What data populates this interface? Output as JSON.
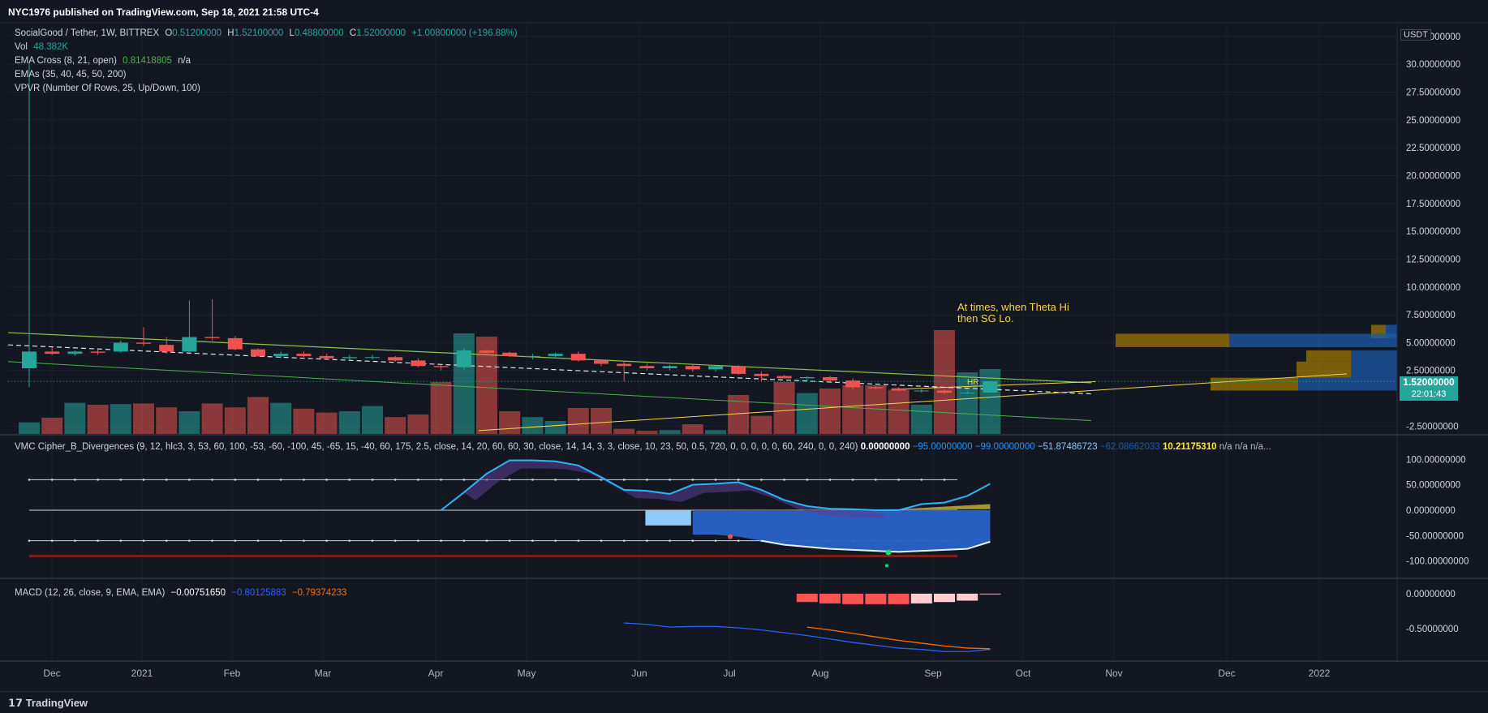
{
  "header": {
    "publisher": "NYC1976 published on TradingView.com, Sep 18, 2021 21:58 UTC-4"
  },
  "footer": {
    "brand": "TradingView"
  },
  "legend": {
    "symbol": "SocialGood / Tether, 1W, BITTREX",
    "o_label": "O",
    "o": "0.51200000",
    "h_label": "H",
    "h": "1.52100000",
    "l_label": "L",
    "l": "0.48800000",
    "c_label": "C",
    "c": "1.52000000",
    "change": "+1.00800000 (+196.88%)",
    "vol_label": "Vol",
    "vol": "48.382K",
    "ema_cross_label": "EMA Cross (8, 21, open)",
    "ema_cross_value": "0.81418805",
    "ema_cross_na": "n/a",
    "emas_label": "EMAs (35, 40, 45, 50, 200)",
    "vpvr_label": "VPVR (Number Of Rows, 25, Up/Down, 100)"
  },
  "annotation": {
    "line1": "At times, when Theta Hi",
    "line2": "then SG Lo.",
    "hr_label": "HR"
  },
  "price_axis": {
    "currency": "USDT",
    "ticks": [
      "32.50000000",
      "30.00000000",
      "27.50000000",
      "25.00000000",
      "22.50000000",
      "20.00000000",
      "17.50000000",
      "15.00000000",
      "12.50000000",
      "10.00000000",
      "7.50000000",
      "5.00000000",
      "2.50000000",
      "1.52000000",
      "-2.50000000"
    ],
    "last_price": "1.52000000",
    "countdown": "22:01:43",
    "last_price_color": "#26a69a"
  },
  "time_axis": {
    "labels": [
      "Dec",
      "2021",
      "Feb",
      "Mar",
      "Apr",
      "May",
      "Jun",
      "Jul",
      "Aug",
      "Sep",
      "Oct",
      "Nov",
      "Dec",
      "2022"
    ]
  },
  "vmc": {
    "label": "VMC Cipher_B_Divergences (9, 12, hlc3, 3, 53, 60, 100, -53, -60, -100, 45, -65, 15, -40, 60, 175, 2.5, close, 14, 20, 60, 60, 30, close, 14, 14, 3, 3, close, 10, 23, 50, 0.5, 720, 0, 0, 0, 0, 0, 60, 240, 0, 0, 240)",
    "values": [
      "0.00000000",
      "−95.00000000",
      "−99.00000000",
      "−51.87486723",
      "−62.08662033",
      "10.21175310",
      "n/a",
      "n/a",
      "n/a..."
    ],
    "value_colors": [
      "#ffffff",
      "#2196f3",
      "#2196f3",
      "#90caf9",
      "#1e5aa8",
      "#ffeb3b",
      "#b2b5be",
      "#b2b5be",
      "#b2b5be"
    ],
    "axis": [
      "100.00000000",
      "50.00000000",
      "0.00000000",
      "-50.00000000",
      "-100.00000000"
    ]
  },
  "macd": {
    "label": "MACD (12, 26, close, 9, EMA, EMA)",
    "hist": "−0.00751650",
    "macd": "−0.80125883",
    "signal": "−0.79374233",
    "axis": [
      "0.00000000",
      "-0.50000000"
    ]
  },
  "colors": {
    "bg": "#131722",
    "up": "#26a69a",
    "down": "#ef5350",
    "grid": "#1e222d"
  },
  "chart_data": [
    {
      "type": "candlestick",
      "title": "SocialGood / Tether, 1W, BITTREX",
      "x": [
        "Nov 23",
        "Nov 30",
        "Dec 7",
        "Dec 14",
        "Dec 21",
        "Dec 28",
        "Jan 4",
        "Jan 11",
        "Jan 18",
        "Jan 25",
        "Feb 1",
        "Feb 8",
        "Feb 15",
        "Feb 22",
        "Mar 1",
        "Mar 8",
        "Mar 15",
        "Mar 22",
        "Mar 29",
        "Apr 5",
        "Apr 12",
        "Apr 19",
        "Apr 26",
        "May 3",
        "May 10",
        "May 17",
        "May 24",
        "May 31",
        "Jun 7",
        "Jun 14",
        "Jun 21",
        "Jun 28",
        "Jul 5",
        "Jul 12",
        "Jul 19",
        "Jul 26",
        "Aug 2",
        "Aug 9",
        "Aug 16",
        "Aug 23",
        "Aug 30",
        "Sep 6",
        "Sep 13"
      ],
      "open": [
        2.7,
        4.2,
        4.0,
        4.2,
        4.2,
        5.0,
        4.8,
        4.2,
        5.5,
        5.4,
        4.4,
        3.8,
        4.0,
        3.8,
        3.6,
        3.7,
        3.7,
        3.4,
        2.9,
        2.8,
        4.3,
        4.1,
        3.8,
        3.8,
        4.0,
        3.4,
        3.1,
        2.9,
        2.7,
        2.9,
        2.6,
        2.9,
        2.2,
        2.0,
        1.8,
        1.9,
        1.6,
        1.0,
        0.9,
        0.7,
        0.7,
        0.5,
        0.51
      ],
      "close": [
        4.2,
        4.0,
        4.2,
        4.1,
        5.0,
        4.9,
        4.2,
        5.5,
        5.4,
        4.4,
        3.8,
        4.0,
        3.8,
        3.6,
        3.7,
        3.7,
        3.4,
        2.9,
        2.8,
        4.3,
        4.1,
        3.8,
        3.8,
        4.0,
        3.4,
        3.1,
        2.9,
        2.7,
        2.9,
        2.6,
        2.9,
        2.2,
        2.0,
        1.8,
        1.9,
        1.6,
        1.0,
        0.9,
        0.7,
        0.7,
        0.5,
        0.5,
        1.52
      ],
      "high": [
        30.2,
        4.6,
        4.3,
        4.4,
        5.2,
        6.4,
        5.5,
        8.8,
        8.9,
        5.6,
        4.5,
        4.2,
        4.2,
        4.0,
        3.9,
        3.9,
        3.8,
        3.6,
        3.1,
        4.5,
        4.4,
        4.2,
        4.0,
        4.1,
        4.2,
        3.5,
        3.3,
        3.1,
        3.0,
        3.0,
        3.0,
        3.0,
        2.4,
        2.1,
        2.0,
        2.0,
        1.8,
        1.1,
        1.0,
        0.8,
        0.8,
        0.7,
        1.52
      ],
      "low": [
        1.0,
        3.9,
        3.8,
        3.9,
        4.1,
        4.7,
        4.0,
        4.1,
        5.2,
        4.3,
        3.7,
        3.6,
        3.7,
        3.5,
        3.5,
        3.5,
        3.3,
        2.8,
        2.5,
        2.6,
        4.0,
        3.7,
        3.5,
        3.6,
        3.3,
        2.9,
        1.5,
        2.5,
        2.5,
        2.4,
        2.4,
        2.1,
        1.5,
        1.8,
        1.6,
        1.5,
        0.8,
        0.8,
        0.6,
        0.5,
        0.4,
        0.4,
        0.488
      ],
      "volume_relative": [
        0.18,
        0.25,
        0.48,
        0.45,
        0.46,
        0.47,
        0.41,
        0.35,
        0.47,
        0.41,
        0.57,
        0.48,
        0.39,
        0.33,
        0.35,
        0.43,
        0.26,
        0.3,
        0.8,
        1.55,
        1.5,
        0.35,
        0.26,
        0.2,
        0.4,
        0.4,
        0.08,
        0.05,
        0.06,
        0.15,
        0.06,
        0.6,
        0.28,
        0.8,
        0.63,
        0.7,
        0.75,
        0.75,
        0.68,
        0.45,
        1.6,
        0.95,
        1.0
      ],
      "ylim": [
        -3.2,
        33.0
      ],
      "yticks": [
        -2.5,
        2.5,
        5,
        7.5,
        10,
        12.5,
        15,
        17.5,
        20,
        22.5,
        25,
        27.5,
        30,
        32.5
      ],
      "last": 1.52,
      "overlays": [
        "descending channel (green)",
        "dashed EMA (white)",
        "yellow projection lines",
        "VPVR volume profile"
      ]
    },
    {
      "type": "line",
      "title": "VMC Cipher_B_Divergences",
      "x": [
        "Mar 29",
        "Apr 5",
        "Apr 12",
        "Apr 19",
        "Apr 26",
        "May 3",
        "May 10",
        "May 17",
        "May 24",
        "May 31",
        "Jun 7",
        "Jun 14",
        "Jun 21",
        "Jun 28",
        "Jul 5",
        "Jul 12",
        "Jul 19",
        "Jul 26",
        "Aug 2",
        "Aug 9",
        "Aug 16",
        "Aug 23",
        "Aug 30",
        "Sep 6",
        "Sep 13"
      ],
      "series": [
        {
          "values": [
            0,
            35,
            72,
            98,
            98,
            96,
            88,
            65,
            40,
            38,
            32,
            50,
            52,
            55,
            40,
            20,
            8,
            3,
            2,
            0,
            0,
            12,
            15,
            28,
            52
          ]
        },
        {
          "values": [
            null,
            null,
            null,
            null,
            null,
            null,
            null,
            null,
            null,
            -50,
            -50,
            -48,
            -48,
            -52,
            -60,
            -68,
            -72,
            -76,
            -78,
            -80,
            -82,
            -80,
            -78,
            -76,
            -62
          ]
        }
      ],
      "ylim": [
        -110,
        110
      ],
      "yticks": [
        -100,
        -50,
        0,
        50,
        100
      ]
    },
    {
      "type": "line",
      "title": "MACD (12, 26, close, 9, EMA, EMA)",
      "x": [
        "May 24",
        "May 31",
        "Jun 7",
        "Jun 14",
        "Jun 21",
        "Jun 28",
        "Jul 5",
        "Jul 12",
        "Jul 19",
        "Jul 26",
        "Aug 2",
        "Aug 9",
        "Aug 16",
        "Aug 23",
        "Aug 30",
        "Sep 6",
        "Sep 13"
      ],
      "series": [
        {
          "values": [
            -0.42,
            -0.44,
            -0.48,
            -0.47,
            -0.47,
            -0.49,
            -0.52,
            -0.56,
            -0.6,
            -0.65,
            -0.7,
            -0.74,
            -0.78,
            -0.8,
            -0.83,
            -0.83,
            -0.8
          ]
        },
        {
          "values": [
            null,
            null,
            null,
            null,
            null,
            null,
            null,
            null,
            -0.48,
            -0.52,
            -0.57,
            -0.62,
            -0.67,
            -0.71,
            -0.75,
            -0.78,
            -0.79
          ]
        }
      ],
      "histogram": [
        null,
        null,
        null,
        null,
        null,
        null,
        null,
        null,
        -0.12,
        -0.14,
        -0.15,
        -0.15,
        -0.15,
        -0.14,
        -0.12,
        -0.1,
        -0.01
      ],
      "ylim": [
        -0.92,
        0.08
      ],
      "yticks": [
        0,
        -0.5
      ]
    }
  ]
}
